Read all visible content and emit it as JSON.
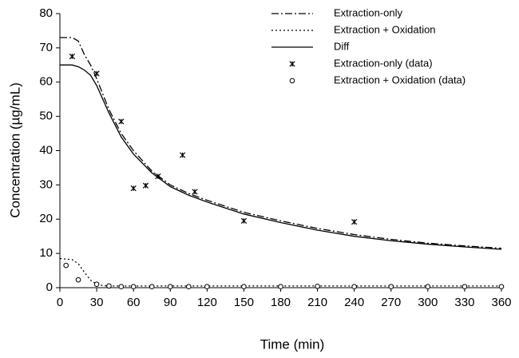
{
  "chart_data": {
    "type": "line",
    "x_label": "Time (min)",
    "y_label": "Concentration (µg/mL)",
    "xlim": [
      0,
      360
    ],
    "xticks": [
      0,
      30,
      60,
      90,
      120,
      150,
      180,
      210,
      240,
      270,
      300,
      330,
      360
    ],
    "ylim": [
      0,
      80
    ],
    "yticks": [
      0,
      10,
      20,
      30,
      40,
      50,
      60,
      70,
      80
    ],
    "grid": false,
    "legend": "top-right",
    "series": [
      {
        "name": "Extraction-only",
        "type": "line",
        "dash": "dash-dot",
        "color": "#000000",
        "x": [
          0,
          10,
          15,
          20,
          25,
          30,
          40,
          50,
          60,
          75,
          90,
          105,
          120,
          150,
          180,
          210,
          240,
          270,
          300,
          330,
          360
        ],
        "values": [
          73,
          73,
          72,
          68,
          65,
          61,
          52,
          45,
          40,
          34,
          30,
          27.5,
          25.5,
          22,
          19.5,
          17.3,
          15.5,
          14.1,
          13,
          12.2,
          11.5
        ]
      },
      {
        "name": "Extraction + Oxidation",
        "type": "line",
        "dash": "dotted",
        "color": "#000000",
        "x": [
          0,
          10,
          15,
          20,
          25,
          30,
          35,
          40,
          60,
          360
        ],
        "values": [
          8.5,
          8.2,
          7,
          4.5,
          2.2,
          1,
          0.6,
          0.5,
          0.5,
          0.5
        ]
      },
      {
        "name": "Diff",
        "type": "line",
        "dash": "solid",
        "color": "#000000",
        "x": [
          0,
          10,
          15,
          20,
          25,
          30,
          40,
          50,
          60,
          75,
          90,
          105,
          120,
          150,
          180,
          210,
          240,
          270,
          300,
          330,
          360
        ],
        "values": [
          65,
          65,
          64.5,
          63.5,
          62,
          59,
          51,
          44,
          39,
          33.5,
          29.5,
          27,
          25,
          21.5,
          19,
          16.8,
          15,
          13.7,
          12.7,
          11.9,
          11.2
        ]
      },
      {
        "name": "Extraction-only (data)",
        "type": "scatter",
        "marker": "star",
        "color": "#000000",
        "x": [
          10,
          30,
          50,
          60,
          70,
          80,
          100,
          110,
          150,
          240
        ],
        "values": [
          67.5,
          62.5,
          48.5,
          29,
          29.8,
          32.5,
          38.7,
          28,
          19.5,
          19.2
        ]
      },
      {
        "name": "Extraction + Oxidation (data)",
        "type": "scatter",
        "marker": "circle",
        "color": "#000000",
        "x": [
          5,
          15,
          30,
          40,
          50,
          60,
          75,
          90,
          105,
          120,
          150,
          180,
          210,
          240,
          270,
          300,
          330,
          360
        ],
        "values": [
          6.5,
          2.3,
          1,
          0.5,
          0.3,
          0.3,
          0.3,
          0.3,
          0.3,
          0.3,
          0.3,
          0.3,
          0.4,
          0.3,
          0.3,
          0.3,
          0.3,
          0.3
        ]
      }
    ]
  }
}
